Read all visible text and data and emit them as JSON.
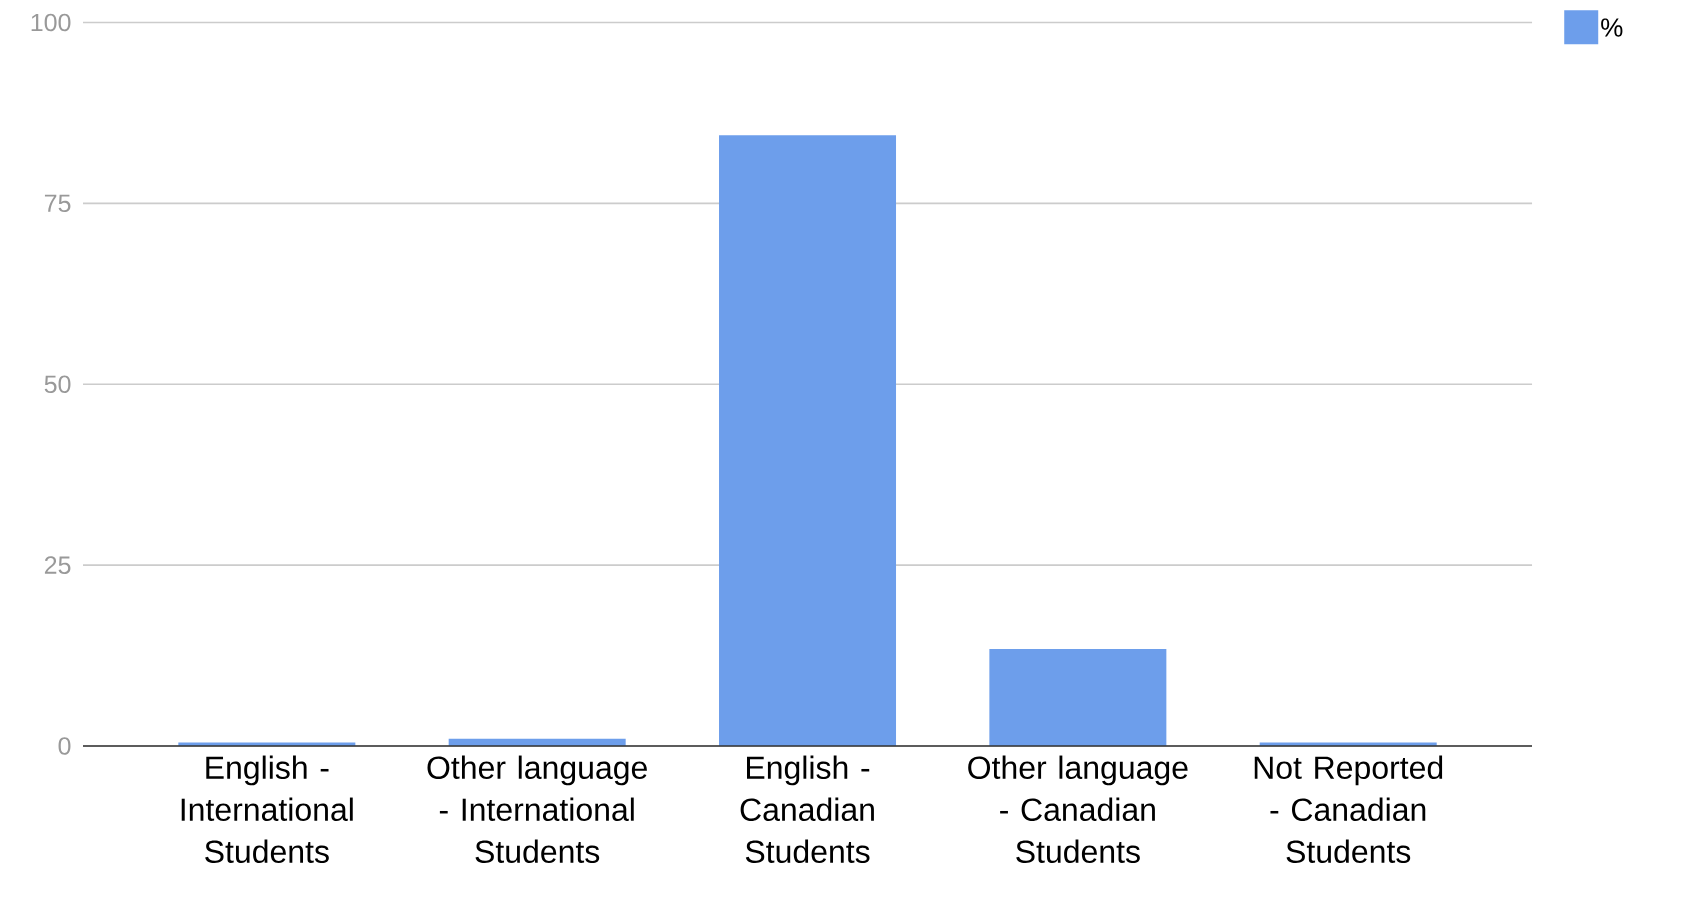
{
  "chart_data": {
    "type": "bar",
    "categories": [
      "English - International Students",
      "Other language - International Students",
      "English - Canadian Students",
      "Other language - Canadian Students",
      "Not Reported - Canadian Students"
    ],
    "series": [
      {
        "name": "%",
        "color": "#6d9eeb",
        "values": [
          0.5,
          1.0,
          84.4,
          13.4,
          0.5
        ]
      }
    ],
    "ylim": [
      0,
      100
    ],
    "yticks": [
      0,
      25,
      50,
      75,
      100
    ],
    "grid": "y",
    "legend": "top right"
  }
}
